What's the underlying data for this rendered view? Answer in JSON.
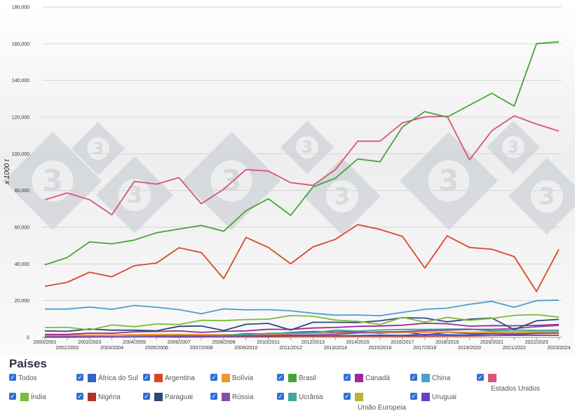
{
  "chart_data": {
    "type": "line",
    "ylabel": "x 1000 t",
    "ylim": [
      0,
      180000
    ],
    "yticks": [
      "0",
      "20,000",
      "40,000",
      "60,000",
      "80,000",
      "100,000",
      "120,000",
      "140,000",
      "160,000",
      "180,000"
    ],
    "x": [
      "2000/2001",
      "2001/2002",
      "2002/2003",
      "2003/2004",
      "2004/2005",
      "2005/2006",
      "2006/2007",
      "2007/2008",
      "2008/2009",
      "2009/2010",
      "2010/2011",
      "2011/2012",
      "2012/2013",
      "2013/2014",
      "2014/2015",
      "2015/2016",
      "2016/2017",
      "2017/2018",
      "2018/2019",
      "2019/2020",
      "2020/2021",
      "2021/2022",
      "2022/2023",
      "2023/2024"
    ],
    "grid": true,
    "legend": "bottom",
    "series": [
      {
        "name": "Brasil",
        "color": "#4aa33a",
        "values": [
          39500,
          43500,
          52000,
          51000,
          53000,
          57000,
          59000,
          61000,
          57800,
          69000,
          75500,
          66500,
          82000,
          86700,
          97200,
          95700,
          114600,
          123000,
          120000,
          126500,
          133000,
          126000,
          160000,
          161000
        ]
      },
      {
        "name": "Estados Unidos",
        "color": "#d9547a",
        "values": [
          75000,
          78700,
          75000,
          66800,
          85000,
          83500,
          87000,
          72800,
          80700,
          91400,
          90600,
          84300,
          82800,
          91400,
          106900,
          106900,
          116900,
          120100,
          120500,
          96700,
          112600,
          120700,
          116200,
          112400
        ]
      },
      {
        "name": "Argentina",
        "color": "#d9472b",
        "values": [
          27800,
          30000,
          35500,
          33000,
          39000,
          40500,
          48800,
          46200,
          32000,
          54500,
          49000,
          40100,
          49300,
          53400,
          61400,
          58800,
          55000,
          37800,
          55300,
          49000,
          48000,
          44000,
          25000,
          48000
        ]
      },
      {
        "name": "China",
        "color": "#4a9fd1",
        "values": [
          15400,
          15400,
          16500,
          15300,
          17400,
          16400,
          15100,
          12900,
          15500,
          15000,
          15100,
          14500,
          13100,
          12100,
          12200,
          11800,
          13600,
          15300,
          15900,
          18000,
          19600,
          16400,
          20000,
          20300
        ]
      },
      {
        "name": "Índia",
        "color": "#7dbb37",
        "values": [
          5300,
          5500,
          4000,
          6800,
          5800,
          7300,
          7000,
          9300,
          9100,
          9700,
          9900,
          11900,
          11500,
          9400,
          8700,
          7000,
          10900,
          8300,
          10900,
          9300,
          10300,
          12000,
          12400,
          11000
        ]
      },
      {
        "name": "Paraguai",
        "color": "#2c4a7a",
        "values": [
          3500,
          3300,
          4500,
          3900,
          3900,
          3600,
          6000,
          6200,
          3700,
          7100,
          7600,
          4000,
          8200,
          8200,
          8100,
          9000,
          10700,
          10500,
          8500,
          9900,
          10500,
          4200,
          9000,
          9800
        ]
      },
      {
        "name": "Canadá",
        "color": "#a0289a",
        "values": [
          1600,
          1600,
          2300,
          2200,
          3000,
          3200,
          3500,
          2700,
          3300,
          3500,
          4400,
          4300,
          5100,
          5400,
          6000,
          6200,
          6600,
          7700,
          7400,
          6100,
          6400,
          6300,
          6500,
          7000
        ]
      },
      {
        "name": "Rússia",
        "color": "#8c4aa8",
        "values": [
          400,
          400,
          400,
          400,
          600,
          700,
          800,
          700,
          700,
          900,
          1100,
          1300,
          1300,
          1600,
          2600,
          3000,
          3100,
          3700,
          3900,
          4300,
          4300,
          4800,
          5800,
          6500
        ]
      },
      {
        "name": "Ucrânia",
        "color": "#3fa999",
        "values": [
          100,
          100,
          100,
          200,
          300,
          700,
          900,
          800,
          1000,
          1600,
          2200,
          2400,
          2400,
          3900,
          3400,
          4000,
          4300,
          4300,
          4500,
          4500,
          3500,
          4000,
          3800,
          3900
        ]
      },
      {
        "name": "Bolívia",
        "color": "#f0962b",
        "values": [
          1200,
          1200,
          1300,
          1300,
          1500,
          1600,
          1600,
          1500,
          1500,
          1500,
          1800,
          2100,
          2300,
          2300,
          2500,
          2600,
          2700,
          2700,
          2700,
          2700,
          3000,
          3000,
          3300,
          3200
        ]
      },
      {
        "name": "Uruguai",
        "color": "#6a3fc7",
        "values": [
          0,
          0,
          100,
          300,
          500,
          600,
          800,
          1000,
          1000,
          2000,
          1800,
          2700,
          3200,
          2900,
          3100,
          2200,
          3200,
          1300,
          2800,
          2000,
          1900,
          1600,
          2100,
          2300
        ]
      },
      {
        "name": "Nigéria",
        "color": "#b3312d",
        "values": [
          400,
          400,
          400,
          400,
          500,
          500,
          600,
          600,
          600,
          600,
          600,
          600,
          600,
          600,
          700,
          700,
          700,
          700,
          750,
          750,
          1000,
          1100,
          1100,
          1100
        ]
      },
      {
        "name": "União Europeia",
        "color": "#b7b53b",
        "values": [
          1000,
          1100,
          1100,
          1200,
          1300,
          1300,
          1400,
          1400,
          1400,
          1300,
          1400,
          1400,
          1400,
          1400,
          2300,
          2400,
          2600,
          2900,
          2900,
          2700,
          2600,
          2500,
          2700,
          2600
        ]
      },
      {
        "name": "África do Sul",
        "color": "#2f64c8",
        "values": [
          200,
          300,
          200,
          200,
          300,
          400,
          200,
          300,
          500,
          500,
          500,
          700,
          800,
          800,
          1000,
          1200,
          1100,
          1600,
          1500,
          1200,
          1900,
          1900,
          2500,
          2300
        ]
      }
    ]
  },
  "legend": {
    "title": "Países",
    "check_mark": "✓",
    "items": [
      {
        "label": "Todos",
        "color": ""
      },
      {
        "label": "África do Sul",
        "color": "#2f64c8"
      },
      {
        "label": "Argentina",
        "color": "#d9472b"
      },
      {
        "label": "Bolívia",
        "color": "#f0962b"
      },
      {
        "label": "Brasil",
        "color": "#4aa33a"
      },
      {
        "label": "Canadá",
        "color": "#a0289a"
      },
      {
        "label": "China",
        "color": "#4a9fd1"
      },
      {
        "label": "Estados Unidos",
        "color": "#d9547a"
      },
      {
        "label": "Índia",
        "color": "#7dbb37"
      },
      {
        "label": "Nigéria",
        "color": "#b3312d"
      },
      {
        "label": "Paraguai",
        "color": "#2c4a7a"
      },
      {
        "label": "Rússia",
        "color": "#8c4aa8"
      },
      {
        "label": "Ucrânia",
        "color": "#3fa999"
      },
      {
        "label": "União Europeia",
        "color": "#b7b53b"
      },
      {
        "label": "Uruguai",
        "color": "#6a3fc7"
      }
    ]
  },
  "watermark": {
    "logo_text": "3"
  }
}
